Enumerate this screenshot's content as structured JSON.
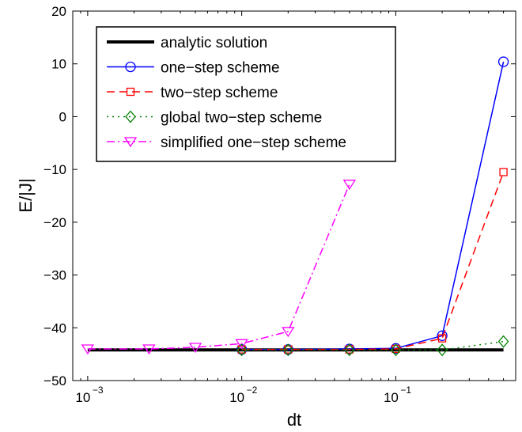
{
  "chart_data": {
    "type": "line",
    "xlabel": "dt",
    "ylabel": "E/|J|",
    "xscale": "log",
    "xlim": [
      0.0008,
      0.6
    ],
    "ylim": [
      -50,
      20
    ],
    "yticks": [
      -50,
      -40,
      -30,
      -20,
      -10,
      0,
      10,
      20
    ],
    "ytick_labels": [
      "−50",
      "−40",
      "−30",
      "−20",
      "−10",
      "0",
      "10",
      "20"
    ],
    "xticks": [
      0.001,
      0.01,
      0.1
    ],
    "xtick_labels": [
      {
        "base": "10",
        "exp": "−3"
      },
      {
        "base": "10",
        "exp": "−2"
      },
      {
        "base": "10",
        "exp": "−1"
      }
    ],
    "grid": false,
    "legend_position": "top-left",
    "series": [
      {
        "name": "analytic solution",
        "color": "#000000",
        "line_style": "solid",
        "line_width": "thick",
        "marker": "none",
        "x": [
          0.001,
          0.5
        ],
        "y": [
          -44.2,
          -44.2
        ]
      },
      {
        "name": "one−step scheme",
        "color": "#0000ff",
        "line_style": "solid",
        "marker": "circle",
        "x": [
          0.01,
          0.02,
          0.05,
          0.1,
          0.2,
          0.5
        ],
        "y": [
          -44.1,
          -44.1,
          -44.0,
          -43.9,
          -41.5,
          10.4
        ]
      },
      {
        "name": "two−step scheme",
        "color": "#ff0000",
        "line_style": "dashed",
        "marker": "square",
        "x": [
          0.01,
          0.02,
          0.05,
          0.1,
          0.2,
          0.5
        ],
        "y": [
          -44.1,
          -44.1,
          -44.1,
          -44.0,
          -42.0,
          -10.5
        ]
      },
      {
        "name": "global two−step scheme",
        "color": "#008000",
        "line_style": "dotted",
        "marker": "diamond",
        "x": [
          0.01,
          0.02,
          0.05,
          0.1,
          0.2,
          0.5
        ],
        "y": [
          -44.2,
          -44.2,
          -44.2,
          -44.2,
          -44.2,
          -42.6
        ]
      },
      {
        "name": "simplified one−step scheme",
        "color": "#ff00ff",
        "line_style": "dashdot",
        "marker": "triangle-down",
        "x": [
          0.001,
          0.0025,
          0.005,
          0.01,
          0.02,
          0.05
        ],
        "y": [
          -44.0,
          -44.0,
          -43.7,
          -43.0,
          -40.7,
          -12.8
        ]
      }
    ]
  }
}
